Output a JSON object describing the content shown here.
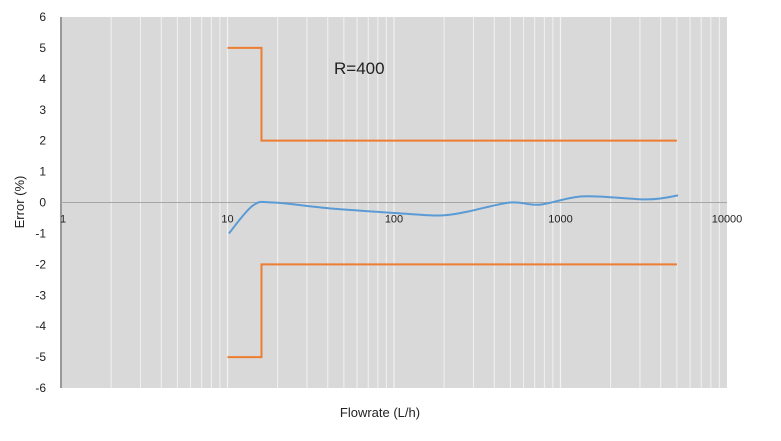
{
  "chart_data": {
    "type": "line",
    "xlabel": "Flowrate (L/h)",
    "ylabel": "Error (%)",
    "x_scale": "log",
    "xlim": [
      1,
      10000
    ],
    "ylim": [
      -6,
      6
    ],
    "x_ticks": [
      "1",
      "10",
      "100",
      "1000",
      "10000"
    ],
    "y_ticks": [
      "6",
      "5",
      "4",
      "3",
      "2",
      "1",
      "0",
      "-1",
      "-2",
      "-3",
      "-4",
      "-5",
      "-6"
    ],
    "grid": "vertical log minor gridlines",
    "annotation": "R=400",
    "colors": {
      "error_curve": "#5b9bd5",
      "limits": "#ed7d31",
      "plot_bg": "#d9d9d9"
    },
    "series": [
      {
        "x": [
          10.2,
          14.2,
          18.8,
          43,
          109,
          189,
          274,
          497,
          753,
          1365,
          3310,
          5080
        ],
        "y": [
          -1.0,
          -0.1,
          0.0,
          -0.2,
          -0.35,
          -0.42,
          -0.3,
          0.0,
          -0.07,
          0.2,
          0.1,
          0.23
        ]
      },
      {
        "x": [
          10,
          16,
          16,
          5000
        ],
        "y": [
          5,
          5,
          2,
          2
        ]
      },
      {
        "x": [
          10,
          16,
          16,
          5000
        ],
        "y": [
          -5,
          -5,
          -2,
          -2
        ]
      }
    ]
  }
}
